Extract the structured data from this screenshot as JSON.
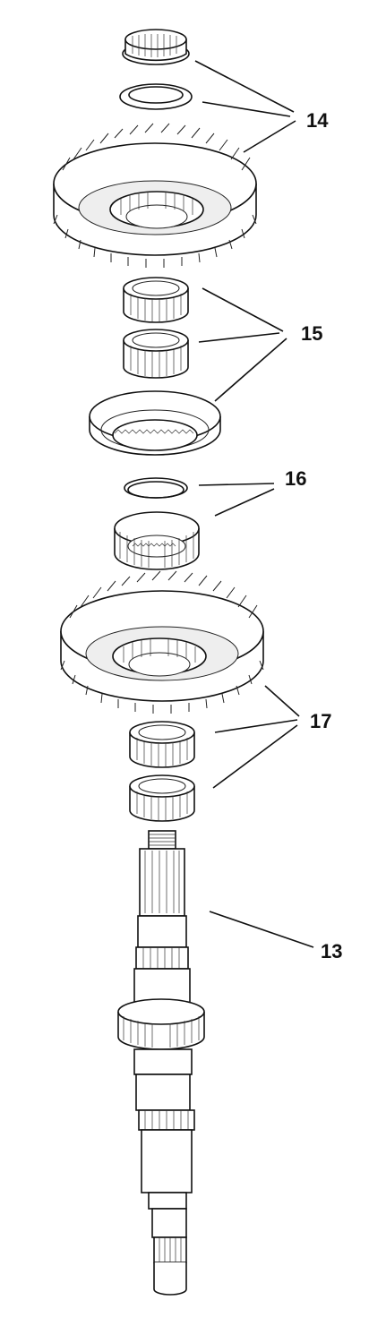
{
  "callouts": [
    {
      "id": "14",
      "label": "14"
    },
    {
      "id": "15",
      "label": "15"
    },
    {
      "id": "16",
      "label": "16"
    },
    {
      "id": "17",
      "label": "17"
    },
    {
      "id": "13",
      "label": "13"
    }
  ],
  "colors": {
    "line": "#111111",
    "background": "#ffffff"
  }
}
